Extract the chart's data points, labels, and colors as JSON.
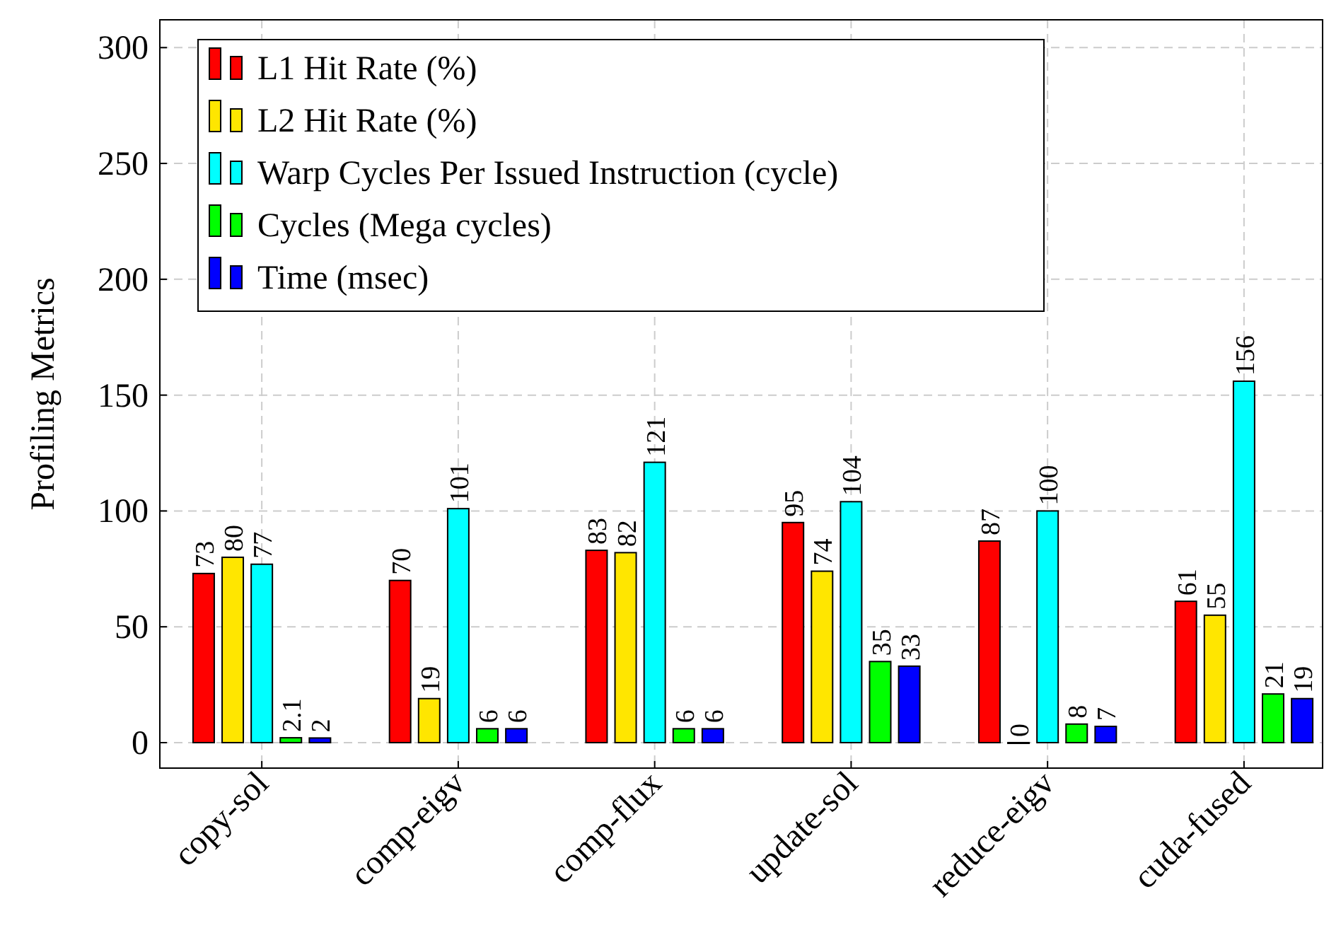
{
  "chart_data": {
    "type": "bar",
    "ylabel": "Profiling Metrics",
    "categories": [
      "copy-sol",
      "comp-eigv",
      "comp-flux",
      "update-sol",
      "reduce-eigv",
      "cuda-fused"
    ],
    "series": [
      {
        "name": "L1 Hit Rate (%)",
        "color": "#ff0000",
        "values": [
          73,
          70,
          83,
          95,
          87,
          61
        ]
      },
      {
        "name": "L2 Hit Rate (%)",
        "color": "#ffe600",
        "values": [
          80,
          19,
          82,
          74,
          0,
          55
        ]
      },
      {
        "name": "Warp Cycles Per Issued Instruction (cycle)",
        "color": "#00ffff",
        "values": [
          77,
          101,
          121,
          104,
          100,
          156
        ]
      },
      {
        "name": "Cycles (Mega cycles)",
        "color": "#00ff00",
        "values": [
          2.1,
          6,
          6,
          35,
          8,
          21
        ]
      },
      {
        "name": "Time (msec)",
        "color": "#0000ff",
        "values": [
          2,
          6,
          6,
          33,
          7,
          19
        ]
      }
    ],
    "ylim": [
      -11,
      312
    ],
    "yticks": [
      0,
      50,
      100,
      150,
      200,
      250,
      300
    ],
    "grid": true,
    "legend": "top left",
    "data_labels": true
  }
}
